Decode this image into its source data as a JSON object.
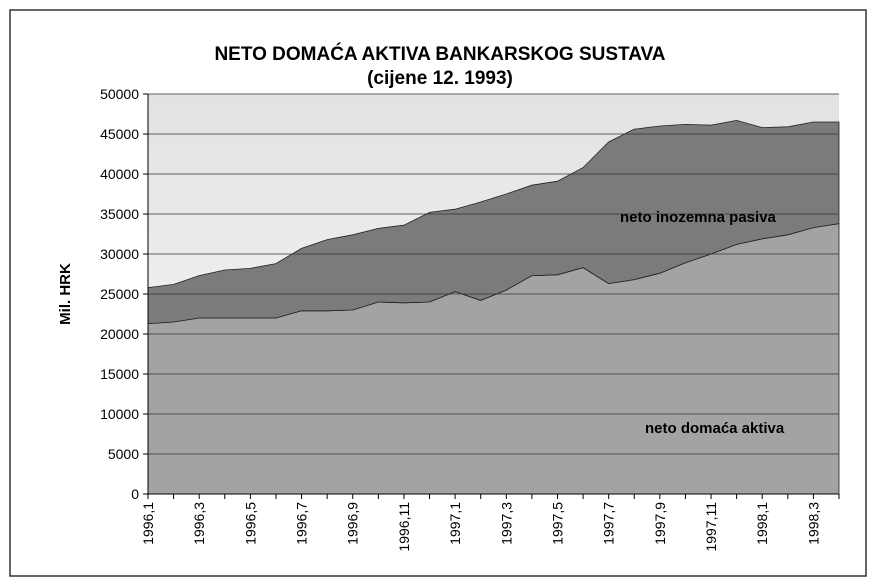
{
  "chart_data": {
    "type": "stacked_area",
    "title": "NETO DOMAĆA AKTIVA BANKARSKOG SUSTAVA",
    "subtitle": "(cijene 12. 1993)",
    "y_label": "Mil. HRK",
    "categories": [
      "1996,1",
      null,
      "1996,3",
      null,
      "1996,5",
      null,
      "1996,7",
      null,
      "1996,9",
      null,
      "1996,11",
      null,
      "1997,1",
      null,
      "1997,3",
      null,
      "1997,5",
      null,
      "1997,7",
      null,
      "1997,9",
      null,
      "1997,11",
      null,
      "1998,1",
      null,
      "1998,3",
      null
    ],
    "series": [
      {
        "name": "neto domaća aktiva",
        "color": "#a3a3a3",
        "values": [
          21300,
          21500,
          22000,
          22000,
          22000,
          22000,
          22900,
          22900,
          23000,
          24000,
          23900,
          24000,
          25300,
          24200,
          25500,
          27300,
          27400,
          28300,
          26300,
          26800,
          27600,
          28900,
          30000,
          31200,
          31900,
          32400,
          33300,
          33800
        ]
      },
      {
        "name": "neto inozemna pasiva",
        "color": "#7b7b7b",
        "values": [
          4500,
          4700,
          5300,
          6000,
          6200,
          6800,
          7800,
          8900,
          9400,
          9200,
          9700,
          11200,
          10300,
          12300,
          12000,
          11300,
          11700,
          12500,
          17700,
          18800,
          18400,
          17300,
          16100,
          15500,
          13900,
          13500,
          13200,
          12700
        ]
      }
    ],
    "ylim": [
      0,
      50000
    ],
    "yticks": [
      0,
      5000,
      10000,
      15000,
      20000,
      25000,
      30000,
      35000,
      40000,
      45000,
      50000
    ],
    "grid": true
  }
}
